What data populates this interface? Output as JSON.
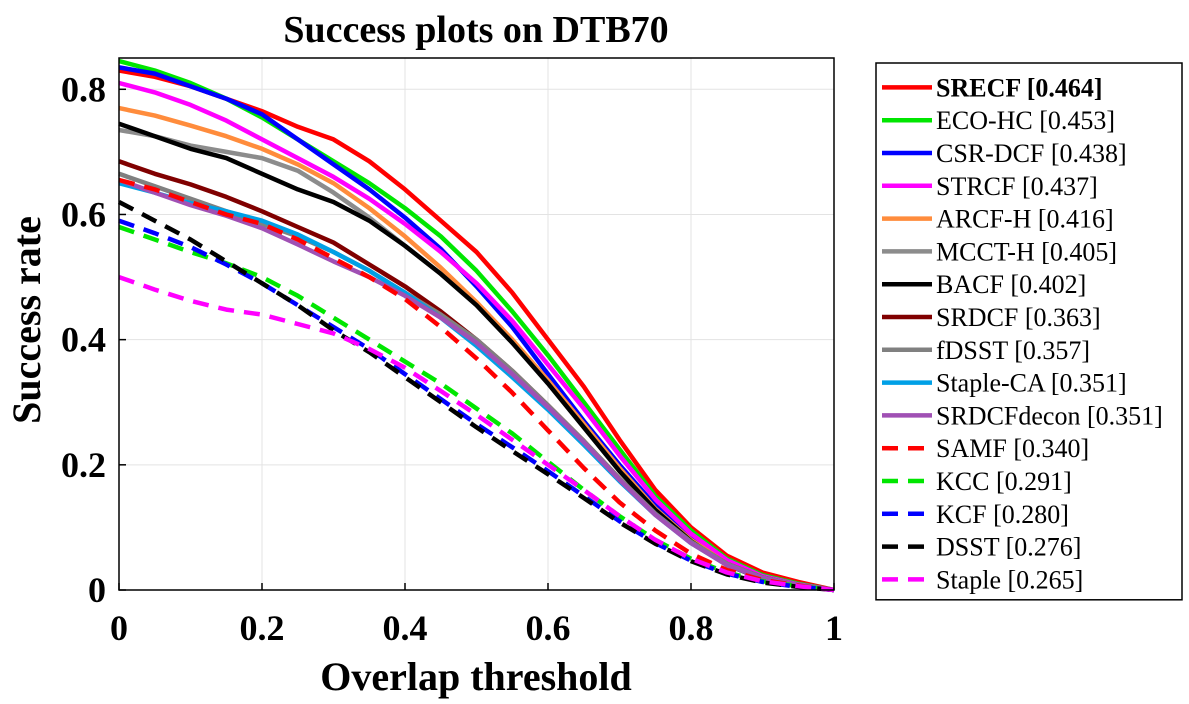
{
  "chart_data": {
    "type": "line",
    "title": "Success plots on DTB70",
    "xlabel": "Overlap threshold",
    "ylabel": "Success rate",
    "xlim": [
      0,
      1
    ],
    "ylim": [
      0,
      0.85
    ],
    "xticks": [
      0,
      0.2,
      0.4,
      0.6,
      0.8,
      1
    ],
    "xtick_labels": [
      "0",
      "0.2",
      "0.4",
      "0.6",
      "0.8",
      "1"
    ],
    "yticks": [
      0,
      0.2,
      0.4,
      0.6,
      0.8
    ],
    "ytick_labels": [
      "0",
      "0.2",
      "0.4",
      "0.6",
      "0.8"
    ],
    "grid": true,
    "legend_position": "right",
    "series": [
      {
        "name": "SRECF [0.464]",
        "color": "#ff0000",
        "dash": "solid",
        "bold": true,
        "x": [
          0,
          0.05,
          0.1,
          0.15,
          0.2,
          0.25,
          0.3,
          0.35,
          0.4,
          0.45,
          0.5,
          0.55,
          0.6,
          0.65,
          0.7,
          0.75,
          0.8,
          0.85,
          0.9,
          0.95,
          1
        ],
        "y": [
          0.83,
          0.82,
          0.805,
          0.785,
          0.765,
          0.74,
          0.72,
          0.685,
          0.64,
          0.59,
          0.54,
          0.475,
          0.4,
          0.325,
          0.24,
          0.16,
          0.1,
          0.055,
          0.028,
          0.013,
          0.0
        ]
      },
      {
        "name": "ECO-HC [0.453]",
        "color": "#00e600",
        "dash": "solid",
        "x": [
          0,
          0.05,
          0.1,
          0.15,
          0.2,
          0.25,
          0.3,
          0.35,
          0.4,
          0.45,
          0.5,
          0.55,
          0.6,
          0.65,
          0.7,
          0.75,
          0.8,
          0.85,
          0.9,
          0.95,
          1
        ],
        "y": [
          0.845,
          0.83,
          0.81,
          0.785,
          0.755,
          0.72,
          0.685,
          0.65,
          0.61,
          0.565,
          0.51,
          0.445,
          0.375,
          0.3,
          0.225,
          0.15,
          0.095,
          0.05,
          0.024,
          0.01,
          0.0
        ]
      },
      {
        "name": "CSR-DCF [0.438]",
        "color": "#0000ff",
        "dash": "solid",
        "x": [
          0,
          0.05,
          0.1,
          0.15,
          0.2,
          0.25,
          0.3,
          0.35,
          0.4,
          0.45,
          0.5,
          0.55,
          0.6,
          0.65,
          0.7,
          0.75,
          0.8,
          0.85,
          0.9,
          0.95,
          1
        ],
        "y": [
          0.835,
          0.825,
          0.805,
          0.785,
          0.76,
          0.72,
          0.68,
          0.64,
          0.595,
          0.545,
          0.485,
          0.42,
          0.345,
          0.27,
          0.2,
          0.135,
          0.085,
          0.045,
          0.02,
          0.008,
          0.0
        ]
      },
      {
        "name": "STRCF [0.437]",
        "color": "#ff00ff",
        "dash": "solid",
        "x": [
          0,
          0.05,
          0.1,
          0.15,
          0.2,
          0.25,
          0.3,
          0.35,
          0.4,
          0.45,
          0.5,
          0.55,
          0.6,
          0.65,
          0.7,
          0.75,
          0.8,
          0.85,
          0.9,
          0.95,
          1
        ],
        "y": [
          0.81,
          0.795,
          0.775,
          0.75,
          0.72,
          0.69,
          0.66,
          0.625,
          0.585,
          0.54,
          0.49,
          0.43,
          0.36,
          0.29,
          0.215,
          0.145,
          0.09,
          0.048,
          0.022,
          0.009,
          0.0
        ]
      },
      {
        "name": "ARCF-H [0.416]",
        "color": "#ff8c3c",
        "dash": "solid",
        "x": [
          0,
          0.05,
          0.1,
          0.15,
          0.2,
          0.25,
          0.3,
          0.35,
          0.4,
          0.45,
          0.5,
          0.55,
          0.6,
          0.65,
          0.7,
          0.75,
          0.8,
          0.85,
          0.9,
          0.95,
          1
        ],
        "y": [
          0.77,
          0.758,
          0.742,
          0.725,
          0.705,
          0.68,
          0.65,
          0.61,
          0.565,
          0.515,
          0.46,
          0.4,
          0.335,
          0.265,
          0.195,
          0.13,
          0.08,
          0.042,
          0.019,
          0.008,
          0.0
        ]
      },
      {
        "name": "MCCT-H [0.405]",
        "color": "#8c8c8c",
        "dash": "solid",
        "x": [
          0,
          0.05,
          0.1,
          0.15,
          0.2,
          0.25,
          0.3,
          0.35,
          0.4,
          0.45,
          0.5,
          0.55,
          0.6,
          0.65,
          0.7,
          0.75,
          0.8,
          0.85,
          0.9,
          0.95,
          1
        ],
        "y": [
          0.735,
          0.725,
          0.71,
          0.7,
          0.69,
          0.67,
          0.635,
          0.595,
          0.55,
          0.505,
          0.455,
          0.395,
          0.33,
          0.26,
          0.19,
          0.128,
          0.078,
          0.04,
          0.018,
          0.007,
          0.0
        ]
      },
      {
        "name": "BACF [0.402]",
        "color": "#000000",
        "dash": "solid",
        "x": [
          0,
          0.05,
          0.1,
          0.15,
          0.2,
          0.25,
          0.3,
          0.35,
          0.4,
          0.45,
          0.5,
          0.55,
          0.6,
          0.65,
          0.7,
          0.75,
          0.8,
          0.85,
          0.9,
          0.95,
          1
        ],
        "y": [
          0.745,
          0.725,
          0.705,
          0.69,
          0.665,
          0.64,
          0.62,
          0.59,
          0.55,
          0.505,
          0.455,
          0.395,
          0.33,
          0.26,
          0.19,
          0.128,
          0.078,
          0.04,
          0.018,
          0.007,
          0.0
        ]
      },
      {
        "name": "SRDCF [0.363]",
        "color": "#800000",
        "dash": "solid",
        "x": [
          0,
          0.05,
          0.1,
          0.15,
          0.2,
          0.25,
          0.3,
          0.35,
          0.4,
          0.45,
          0.5,
          0.55,
          0.6,
          0.65,
          0.7,
          0.75,
          0.8,
          0.85,
          0.9,
          0.95,
          1
        ],
        "y": [
          0.685,
          0.665,
          0.648,
          0.628,
          0.605,
          0.58,
          0.555,
          0.52,
          0.485,
          0.445,
          0.4,
          0.35,
          0.295,
          0.238,
          0.178,
          0.122,
          0.077,
          0.042,
          0.02,
          0.008,
          0.0
        ]
      },
      {
        "name": "fDSST [0.357]",
        "color": "#808080",
        "dash": "solid",
        "x": [
          0,
          0.05,
          0.1,
          0.15,
          0.2,
          0.25,
          0.3,
          0.35,
          0.4,
          0.45,
          0.5,
          0.55,
          0.6,
          0.65,
          0.7,
          0.75,
          0.8,
          0.85,
          0.9,
          0.95,
          1
        ],
        "y": [
          0.665,
          0.645,
          0.625,
          0.605,
          0.585,
          0.565,
          0.54,
          0.51,
          0.475,
          0.44,
          0.4,
          0.35,
          0.295,
          0.238,
          0.178,
          0.122,
          0.077,
          0.042,
          0.02,
          0.008,
          0.0
        ]
      },
      {
        "name": "Staple-CA [0.351]",
        "color": "#00a0e6",
        "dash": "solid",
        "x": [
          0,
          0.05,
          0.1,
          0.15,
          0.2,
          0.25,
          0.3,
          0.35,
          0.4,
          0.45,
          0.5,
          0.55,
          0.6,
          0.65,
          0.7,
          0.75,
          0.8,
          0.85,
          0.9,
          0.95,
          1
        ],
        "y": [
          0.65,
          0.635,
          0.618,
          0.605,
          0.59,
          0.568,
          0.54,
          0.51,
          0.475,
          0.435,
          0.39,
          0.34,
          0.288,
          0.232,
          0.174,
          0.12,
          0.075,
          0.04,
          0.019,
          0.008,
          0.0
        ]
      },
      {
        "name": "SRDCFdecon [0.351]",
        "color": "#a050b4",
        "dash": "solid",
        "x": [
          0,
          0.05,
          0.1,
          0.15,
          0.2,
          0.25,
          0.3,
          0.35,
          0.4,
          0.45,
          0.5,
          0.55,
          0.6,
          0.65,
          0.7,
          0.75,
          0.8,
          0.85,
          0.9,
          0.95,
          1
        ],
        "y": [
          0.655,
          0.635,
          0.615,
          0.598,
          0.578,
          0.552,
          0.525,
          0.5,
          0.47,
          0.435,
          0.395,
          0.345,
          0.292,
          0.236,
          0.176,
          0.12,
          0.075,
          0.04,
          0.019,
          0.008,
          0.0
        ]
      },
      {
        "name": "SAMF [0.340]",
        "color": "#ff0000",
        "dash": "dashed",
        "x": [
          0,
          0.05,
          0.1,
          0.15,
          0.2,
          0.25,
          0.3,
          0.35,
          0.4,
          0.45,
          0.5,
          0.55,
          0.6,
          0.65,
          0.7,
          0.75,
          0.8,
          0.85,
          0.9,
          0.95,
          1
        ],
        "y": [
          0.655,
          0.64,
          0.62,
          0.6,
          0.585,
          0.56,
          0.53,
          0.5,
          0.465,
          0.42,
          0.37,
          0.315,
          0.255,
          0.195,
          0.14,
          0.095,
          0.058,
          0.032,
          0.016,
          0.007,
          0.0
        ]
      },
      {
        "name": "KCC [0.291]",
        "color": "#00e600",
        "dash": "dashed",
        "x": [
          0,
          0.05,
          0.1,
          0.15,
          0.2,
          0.25,
          0.3,
          0.35,
          0.4,
          0.45,
          0.5,
          0.55,
          0.6,
          0.65,
          0.7,
          0.75,
          0.8,
          0.85,
          0.9,
          0.95,
          1
        ],
        "y": [
          0.58,
          0.56,
          0.54,
          0.522,
          0.5,
          0.47,
          0.435,
          0.4,
          0.365,
          0.33,
          0.29,
          0.25,
          0.205,
          0.16,
          0.118,
          0.08,
          0.05,
          0.028,
          0.014,
          0.006,
          0.0
        ]
      },
      {
        "name": "KCF [0.280]",
        "color": "#0000ff",
        "dash": "dashed",
        "x": [
          0,
          0.05,
          0.1,
          0.15,
          0.2,
          0.25,
          0.3,
          0.35,
          0.4,
          0.45,
          0.5,
          0.55,
          0.6,
          0.65,
          0.7,
          0.75,
          0.8,
          0.85,
          0.9,
          0.95,
          1
        ],
        "y": [
          0.59,
          0.57,
          0.548,
          0.52,
          0.49,
          0.455,
          0.42,
          0.385,
          0.345,
          0.305,
          0.265,
          0.228,
          0.19,
          0.15,
          0.11,
          0.075,
          0.047,
          0.026,
          0.013,
          0.005,
          0.0
        ]
      },
      {
        "name": "DSST [0.276]",
        "color": "#000000",
        "dash": "dashed",
        "x": [
          0,
          0.05,
          0.1,
          0.15,
          0.2,
          0.25,
          0.3,
          0.35,
          0.4,
          0.45,
          0.5,
          0.55,
          0.6,
          0.65,
          0.7,
          0.75,
          0.8,
          0.85,
          0.9,
          0.95,
          1
        ],
        "y": [
          0.62,
          0.59,
          0.56,
          0.525,
          0.49,
          0.455,
          0.415,
          0.38,
          0.34,
          0.3,
          0.26,
          0.222,
          0.185,
          0.147,
          0.108,
          0.074,
          0.046,
          0.025,
          0.012,
          0.005,
          0.0
        ]
      },
      {
        "name": "Staple [0.265]",
        "color": "#ff00ff",
        "dash": "dashed",
        "x": [
          0,
          0.05,
          0.1,
          0.15,
          0.2,
          0.25,
          0.3,
          0.35,
          0.4,
          0.45,
          0.5,
          0.55,
          0.6,
          0.65,
          0.7,
          0.75,
          0.8,
          0.85,
          0.9,
          0.95,
          1
        ],
        "y": [
          0.5,
          0.48,
          0.462,
          0.448,
          0.44,
          0.425,
          0.41,
          0.385,
          0.355,
          0.318,
          0.28,
          0.24,
          0.2,
          0.16,
          0.118,
          0.08,
          0.05,
          0.028,
          0.014,
          0.006,
          0.0
        ]
      }
    ]
  }
}
